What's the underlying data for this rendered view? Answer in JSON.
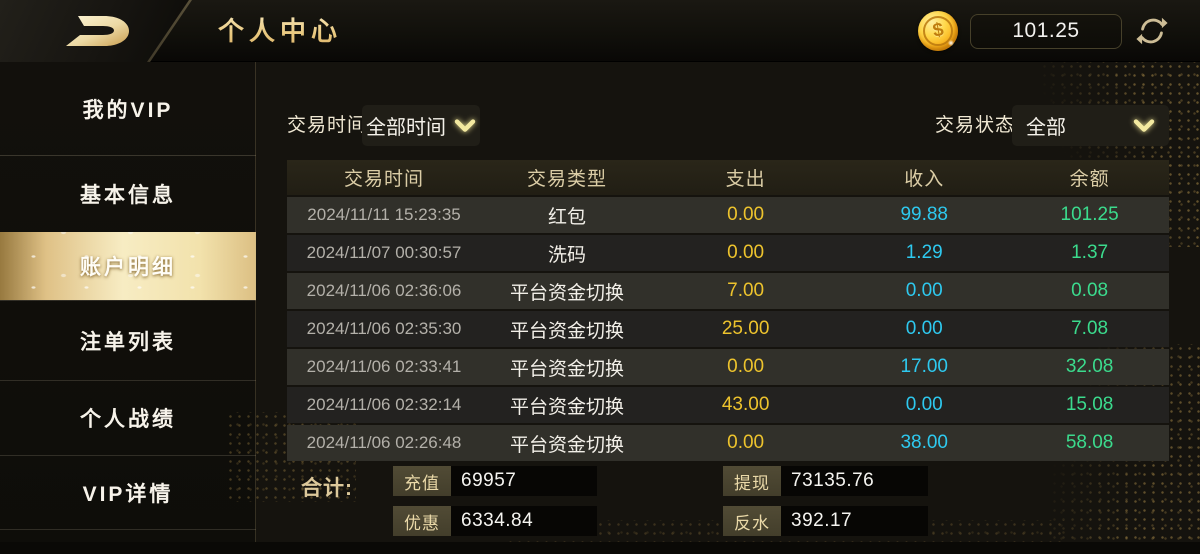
{
  "header": {
    "title": "个人中心",
    "balance": "101.25",
    "logo_icon": "brand-d-arrow-logo",
    "coin_icon": "gold-dollar-coin",
    "refresh_icon": "refresh-circular-arrows"
  },
  "sidebar": {
    "items": [
      {
        "label": "我的VIP",
        "selected": false
      },
      {
        "label": "基本信息",
        "selected": false
      },
      {
        "label": "账户明细",
        "selected": true
      },
      {
        "label": "注单列表",
        "selected": false
      },
      {
        "label": "个人战绩",
        "selected": false
      },
      {
        "label": "VIP详情",
        "selected": false
      }
    ]
  },
  "filters": {
    "time_label": "交易时间",
    "time_value": "全部时间",
    "status_label": "交易状态",
    "status_value": "全部",
    "chevron_icon": "chevron-down"
  },
  "table": {
    "columns": [
      "交易时间",
      "交易类型",
      "支出",
      "收入",
      "余额"
    ],
    "rows": [
      {
        "time": "2024/11/11 15:23:35",
        "type": "红包",
        "out": "0.00",
        "in": "99.88",
        "balance": "101.25"
      },
      {
        "time": "2024/11/07 00:30:57",
        "type": "洗码",
        "out": "0.00",
        "in": "1.29",
        "balance": "1.37"
      },
      {
        "time": "2024/11/06 02:36:06",
        "type": "平台资金切换",
        "out": "7.00",
        "in": "0.00",
        "balance": "0.08"
      },
      {
        "time": "2024/11/06 02:35:30",
        "type": "平台资金切换",
        "out": "25.00",
        "in": "0.00",
        "balance": "7.08"
      },
      {
        "time": "2024/11/06 02:33:41",
        "type": "平台资金切换",
        "out": "0.00",
        "in": "17.00",
        "balance": "32.08"
      },
      {
        "time": "2024/11/06 02:32:14",
        "type": "平台资金切换",
        "out": "43.00",
        "in": "0.00",
        "balance": "15.08"
      },
      {
        "time": "2024/11/06 02:26:48",
        "type": "平台资金切换",
        "out": "0.00",
        "in": "38.00",
        "balance": "58.08"
      }
    ]
  },
  "summary": {
    "label": "合计:",
    "stats": [
      {
        "name": "充值",
        "value": "69957"
      },
      {
        "name": "提现",
        "value": "73135.76"
      },
      {
        "name": "优惠",
        "value": "6334.84"
      },
      {
        "name": "反水",
        "value": "392.17"
      }
    ]
  },
  "colors": {
    "expense": "#edc32d",
    "income": "#2ec9ef",
    "balance_green": "#3bdb8d",
    "accent_gold": "#e8cf9a"
  }
}
